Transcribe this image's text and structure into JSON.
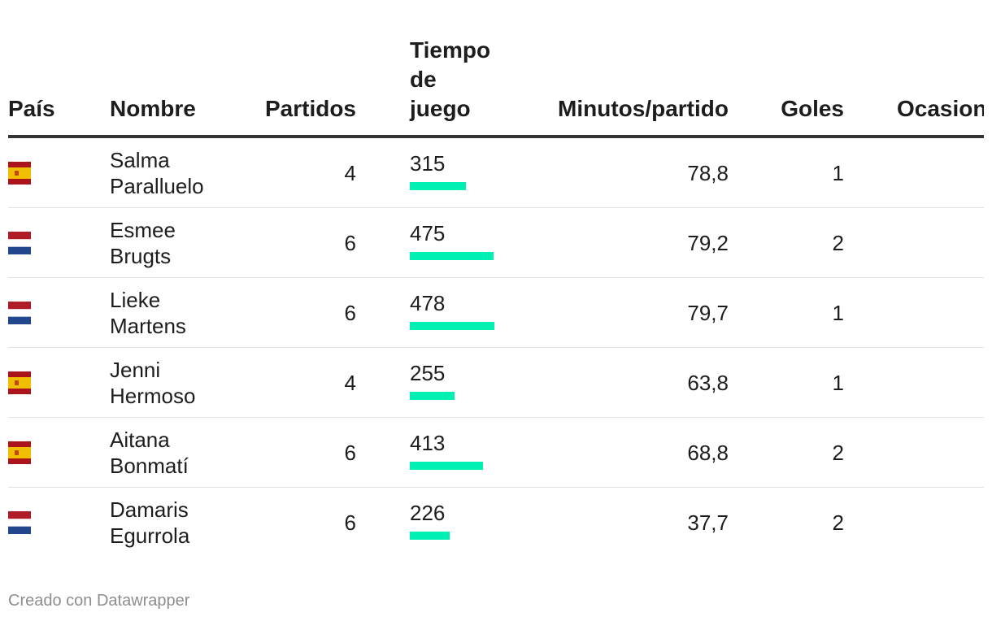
{
  "headers": {
    "pais": "País",
    "nombre": "Nombre",
    "partidos": "Partidos",
    "tiempo_line1": "Tiempo",
    "tiempo_line2": "de",
    "tiempo_line3": "juego",
    "minutos": "Minutos/partido",
    "goles": "Goles",
    "ocasiones": "Ocasiones"
  },
  "colors": {
    "bar": "#00f0b4",
    "spain_red": "#aa151b",
    "spain_yellow": "#f1bf00",
    "netherlands_red": "#ae1c28",
    "netherlands_white": "#ffffff",
    "netherlands_blue": "#21468b"
  },
  "chart_data": {
    "type": "table",
    "columns": [
      "País",
      "Nombre",
      "Partidos",
      "Tiempo de juego",
      "Minutos/partido",
      "Goles",
      "Ocasiones"
    ],
    "bar_column": "Tiempo de juego",
    "bar_max": 478,
    "rows": [
      {
        "flag": "spain-flag-icon",
        "name_line1": "Salma",
        "name_line2": "Paralluelo",
        "partidos": "4",
        "tiempo": 315,
        "minutos": "78,8",
        "goles": "1"
      },
      {
        "flag": "netherlands-flag-icon",
        "name_line1": "Esmee",
        "name_line2": "Brugts",
        "partidos": "6",
        "tiempo": 475,
        "minutos": "79,2",
        "goles": "2"
      },
      {
        "flag": "netherlands-flag-icon",
        "name_line1": "Lieke",
        "name_line2": "Martens",
        "partidos": "6",
        "tiempo": 478,
        "minutos": "79,7",
        "goles": "1"
      },
      {
        "flag": "spain-flag-icon",
        "name_line1": "Jenni",
        "name_line2": "Hermoso",
        "partidos": "4",
        "tiempo": 255,
        "minutos": "63,8",
        "goles": "1"
      },
      {
        "flag": "spain-flag-icon",
        "name_line1": "Aitana",
        "name_line2": "Bonmatí",
        "partidos": "6",
        "tiempo": 413,
        "minutos": "68,8",
        "goles": "2"
      },
      {
        "flag": "netherlands-flag-icon",
        "name_line1": "Damaris",
        "name_line2": "Egurrola",
        "partidos": "6",
        "tiempo": 226,
        "minutos": "37,7",
        "goles": "2"
      }
    ]
  },
  "footer": "Creado con Datawrapper"
}
